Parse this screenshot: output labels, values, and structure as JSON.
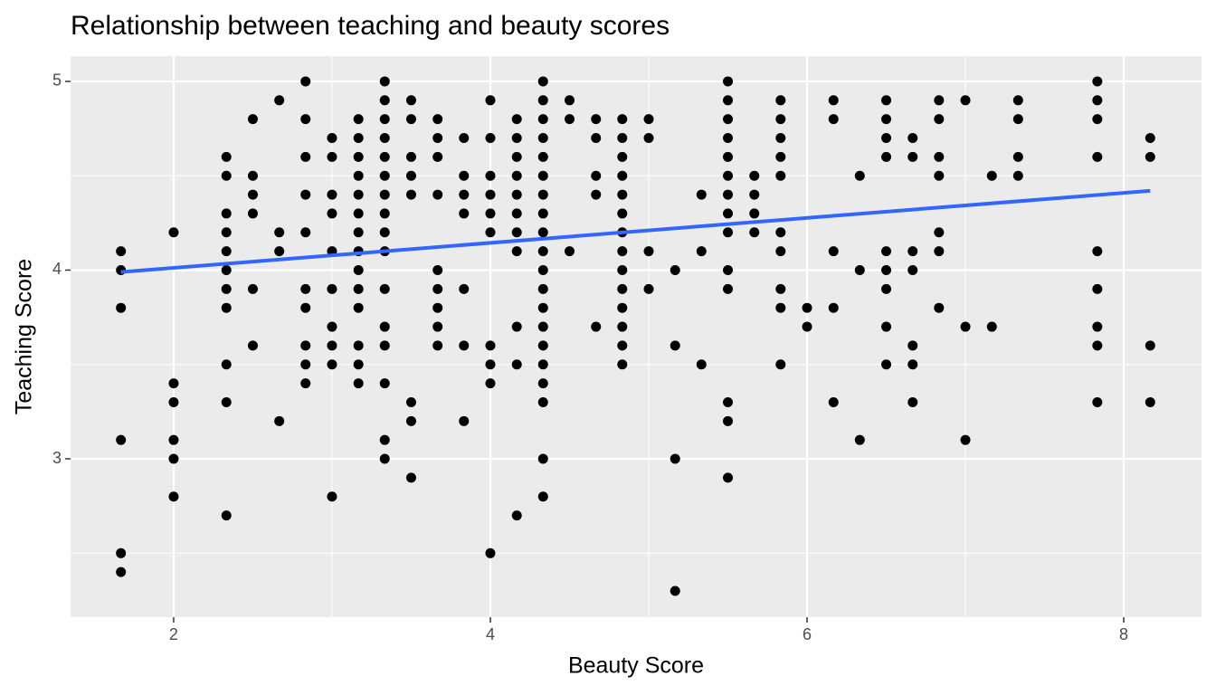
{
  "chart_data": {
    "type": "scatter",
    "title": "Relationship between teaching and beauty scores",
    "x_label": "Beauty Score",
    "y_label": "Teaching Score",
    "xlim": [
      1.349,
      8.491
    ],
    "ylim": [
      2.161,
      5.134
    ],
    "xticks": [
      2,
      4,
      6,
      8
    ],
    "yticks": [
      3,
      4,
      5
    ],
    "xminorticks": [
      3,
      5,
      7
    ],
    "yminorticks": [
      2.5,
      3.5,
      4.5
    ],
    "grid": true,
    "panel_color": "#ebebeb",
    "series": [
      {
        "color": "#000000",
        "x": [
          1.667,
          1.667,
          1.667,
          1.667,
          1.667,
          1.667,
          2,
          2,
          2,
          2,
          2,
          2,
          2.333,
          2.333,
          2.333,
          2.333,
          2.333,
          2.333,
          2.333,
          2.333,
          2.333,
          2.333,
          2.333,
          2.5,
          2.5,
          2.5,
          2.5,
          2.5,
          2.5,
          2.667,
          2.667,
          2.667,
          2.667,
          2.833,
          2.833,
          2.833,
          2.833,
          2.833,
          2.833,
          2.833,
          2.833,
          2.833,
          2.833,
          3,
          3,
          3,
          3,
          3,
          3,
          3,
          3,
          3,
          3,
          3.167,
          3.167,
          3.167,
          3.167,
          3.167,
          3.167,
          3.167,
          3.167,
          3.167,
          3.167,
          3.167,
          3.167,
          3.167,
          3.167,
          3.333,
          3.333,
          3.333,
          3.333,
          3.333,
          3.333,
          3.333,
          3.333,
          3.333,
          3.333,
          3.333,
          3.333,
          3.333,
          3.333,
          3.333,
          3.333,
          3.5,
          3.5,
          3.5,
          3.5,
          3.5,
          3.5,
          3.5,
          3.5,
          3.667,
          3.667,
          3.667,
          3.667,
          3.667,
          3.667,
          3.667,
          3.667,
          3.667,
          3.833,
          3.833,
          3.833,
          3.833,
          3.833,
          3.833,
          3.833,
          4,
          4,
          4,
          4,
          4,
          4,
          4,
          4,
          4,
          4,
          4.167,
          4.167,
          4.167,
          4.167,
          4.167,
          4.167,
          4.167,
          4.167,
          4.167,
          4.167,
          4.167,
          4.333,
          4.333,
          4.333,
          4.333,
          4.333,
          4.333,
          4.333,
          4.333,
          4.333,
          4.333,
          4.333,
          4.333,
          4.333,
          4.333,
          4.333,
          4.333,
          4.333,
          4.333,
          4.333,
          4.333,
          4.5,
          4.5,
          4.5,
          4.667,
          4.667,
          4.667,
          4.667,
          4.667,
          4.833,
          4.833,
          4.833,
          4.833,
          4.833,
          4.833,
          4.833,
          4.833,
          4.833,
          4.833,
          4.833,
          4.833,
          4.833,
          4.833,
          5,
          5,
          5,
          5,
          5.167,
          5.167,
          5.167,
          5.167,
          5.333,
          5.333,
          5.333,
          5.5,
          5.5,
          5.5,
          5.5,
          5.5,
          5.5,
          5.5,
          5.5,
          5.5,
          5.5,
          5.5,
          5.5,
          5.5,
          5.5,
          5.667,
          5.667,
          5.667,
          5.667,
          5.833,
          5.833,
          5.833,
          5.833,
          5.833,
          5.833,
          5.833,
          5.833,
          5.833,
          5.833,
          6,
          6,
          6.167,
          6.167,
          6.167,
          6.167,
          6.167,
          6.333,
          6.333,
          6.333,
          6.5,
          6.5,
          6.5,
          6.5,
          6.5,
          6.5,
          6.5,
          6.5,
          6.5,
          6.667,
          6.667,
          6.667,
          6.667,
          6.667,
          6.667,
          6.667,
          6.833,
          6.833,
          6.833,
          6.833,
          6.833,
          6.833,
          6.833,
          7,
          7,
          7,
          7.167,
          7.167,
          7.333,
          7.333,
          7.333,
          7.333,
          7.833,
          7.833,
          7.833,
          7.833,
          7.833,
          7.833,
          7.833,
          7.833,
          7.833,
          8.167,
          8.167,
          8.167,
          8.167
        ],
        "values": [
          4.1,
          4.0,
          3.8,
          3.1,
          2.5,
          2.4,
          4.2,
          3.4,
          3.3,
          3.1,
          3.0,
          2.8,
          4.6,
          4.5,
          4.3,
          4.2,
          4.1,
          4.0,
          3.9,
          3.8,
          3.5,
          3.3,
          2.7,
          4.8,
          4.5,
          4.4,
          4.3,
          3.9,
          3.6,
          4.9,
          4.2,
          4.1,
          3.2,
          5.0,
          4.8,
          4.6,
          4.4,
          4.2,
          3.9,
          3.8,
          3.6,
          3.5,
          3.4,
          4.7,
          4.6,
          4.4,
          4.3,
          4.1,
          3.9,
          3.7,
          3.6,
          3.5,
          2.8,
          4.8,
          4.7,
          4.6,
          4.5,
          4.4,
          4.3,
          4.2,
          4.1,
          4.0,
          3.9,
          3.8,
          3.6,
          3.5,
          3.4,
          5.0,
          4.9,
          4.8,
          4.7,
          4.6,
          4.5,
          4.4,
          4.3,
          4.2,
          4.1,
          3.9,
          3.7,
          3.6,
          3.4,
          3.1,
          3.0,
          4.9,
          4.8,
          4.6,
          4.5,
          4.4,
          3.3,
          3.2,
          2.9,
          4.8,
          4.7,
          4.6,
          4.4,
          4.0,
          3.9,
          3.8,
          3.7,
          3.6,
          4.7,
          4.5,
          4.4,
          4.3,
          3.9,
          3.6,
          3.2,
          4.9,
          4.7,
          4.5,
          4.4,
          4.3,
          4.2,
          3.6,
          3.5,
          3.4,
          2.5,
          4.8,
          4.7,
          4.6,
          4.5,
          4.4,
          4.3,
          4.2,
          4.1,
          3.7,
          3.5,
          2.7,
          5.0,
          4.9,
          4.8,
          4.7,
          4.6,
          4.5,
          4.4,
          4.3,
          4.2,
          4.1,
          4.0,
          3.9,
          3.8,
          3.7,
          3.6,
          3.5,
          3.4,
          3.3,
          3.0,
          2.8,
          4.9,
          4.8,
          4.1,
          4.8,
          4.7,
          4.5,
          4.4,
          3.7,
          4.8,
          4.7,
          4.6,
          4.5,
          4.4,
          4.3,
          4.2,
          4.1,
          4.0,
          3.9,
          3.8,
          3.7,
          3.6,
          3.5,
          4.8,
          4.7,
          4.1,
          3.9,
          4.0,
          3.6,
          3.0,
          2.3,
          4.4,
          4.1,
          3.5,
          5.0,
          4.9,
          4.8,
          4.7,
          4.6,
          4.5,
          4.4,
          4.3,
          4.2,
          4.0,
          3.9,
          3.3,
          3.2,
          2.9,
          4.5,
          4.4,
          4.3,
          4.2,
          4.9,
          4.8,
          4.7,
          4.6,
          4.5,
          4.2,
          4.1,
          3.9,
          3.8,
          3.5,
          3.8,
          3.7,
          4.9,
          4.8,
          4.1,
          3.8,
          3.3,
          4.5,
          4.0,
          3.1,
          4.9,
          4.8,
          4.7,
          4.6,
          4.1,
          4.0,
          3.9,
          3.7,
          3.5,
          4.7,
          4.6,
          4.1,
          4.0,
          3.6,
          3.5,
          3.3,
          4.9,
          4.8,
          4.6,
          4.5,
          4.2,
          4.1,
          3.8,
          4.9,
          3.7,
          3.1,
          4.5,
          3.7,
          4.9,
          4.8,
          4.6,
          4.5,
          5.0,
          4.9,
          4.8,
          4.6,
          4.1,
          3.9,
          3.7,
          3.6,
          3.3,
          4.7,
          4.6,
          3.6,
          3.3
        ]
      }
    ],
    "trend": {
      "color": "#3366ff",
      "x": [
        1.667,
        8.167
      ],
      "values": [
        3.99,
        4.42
      ]
    }
  }
}
